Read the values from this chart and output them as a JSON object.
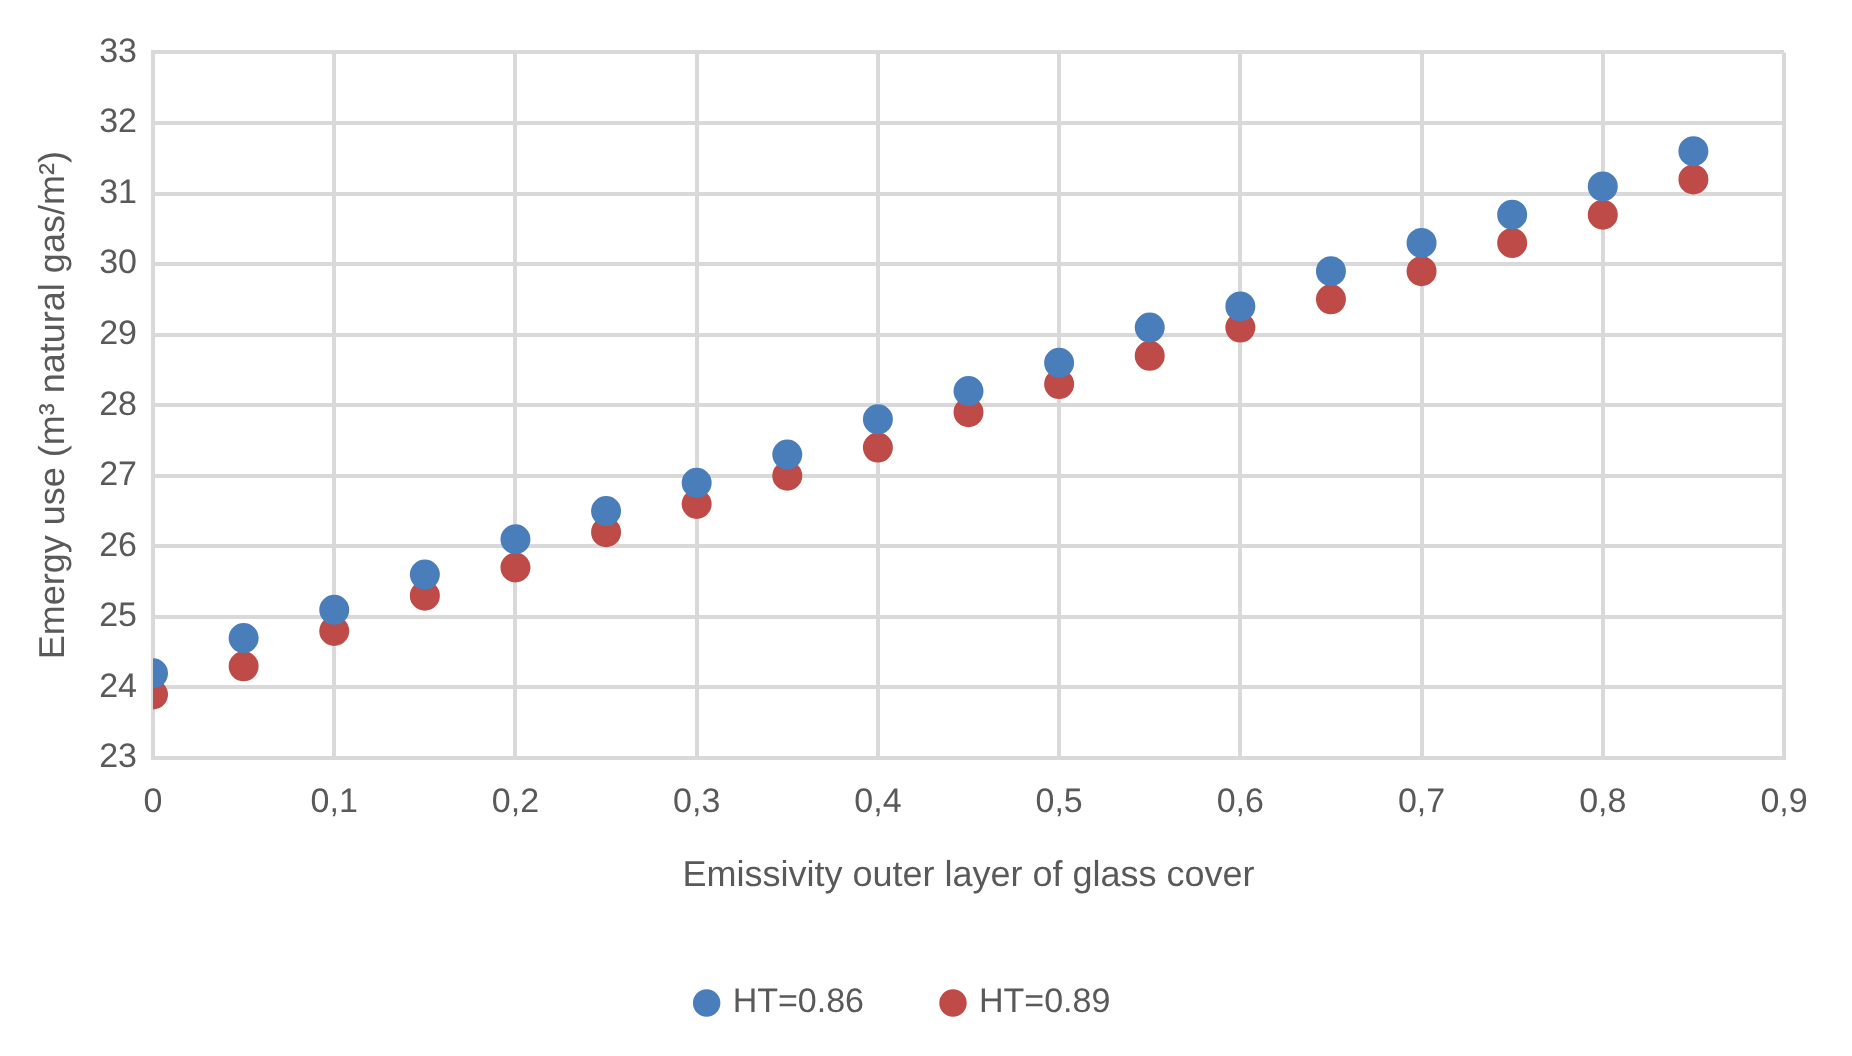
{
  "chart_data": {
    "type": "scatter",
    "xlabel": "Emissivity outer layer of glass cover",
    "ylabel": "Emergy use (m³ natural gas/m²)",
    "x": [
      0,
      0.05,
      0.1,
      0.15,
      0.2,
      0.25,
      0.3,
      0.35,
      0.4,
      0.45,
      0.5,
      0.55,
      0.6,
      0.65,
      0.7,
      0.75,
      0.8,
      0.85
    ],
    "series": [
      {
        "name": "HT=0.86",
        "color": "#4a7ebb",
        "values": [
          24.2,
          24.7,
          25.1,
          25.6,
          26.1,
          26.5,
          26.9,
          27.3,
          27.8,
          28.2,
          28.6,
          29.1,
          29.4,
          29.9,
          30.3,
          30.7,
          31.1,
          31.6
        ]
      },
      {
        "name": "HT=0.89",
        "color": "#be4b48",
        "values": [
          23.9,
          24.3,
          24.8,
          25.3,
          25.7,
          26.2,
          26.6,
          27.0,
          27.4,
          27.9,
          28.3,
          28.7,
          29.1,
          29.5,
          29.9,
          30.3,
          30.7,
          31.2
        ]
      }
    ],
    "xlim": [
      0,
      0.9
    ],
    "xticks": [
      0,
      {
        "value": 0.1,
        "label": "0,1"
      },
      {
        "value": 0.2,
        "label": "0,2"
      },
      {
        "value": 0.3,
        "label": "0,3"
      },
      {
        "value": 0.4,
        "label": "0,4"
      },
      {
        "value": 0.5,
        "label": "0,5"
      },
      {
        "value": 0.6,
        "label": "0,6"
      },
      {
        "value": 0.7,
        "label": "0,7"
      },
      {
        "value": 0.8,
        "label": "0,8"
      },
      {
        "value": 0.9,
        "label": "0,9"
      }
    ],
    "ylim": [
      23,
      33
    ],
    "yticks": [
      23,
      24,
      25,
      26,
      27,
      28,
      29,
      30,
      31,
      32,
      33
    ],
    "grid": true,
    "legend": "bottom",
    "marker": "circle"
  }
}
